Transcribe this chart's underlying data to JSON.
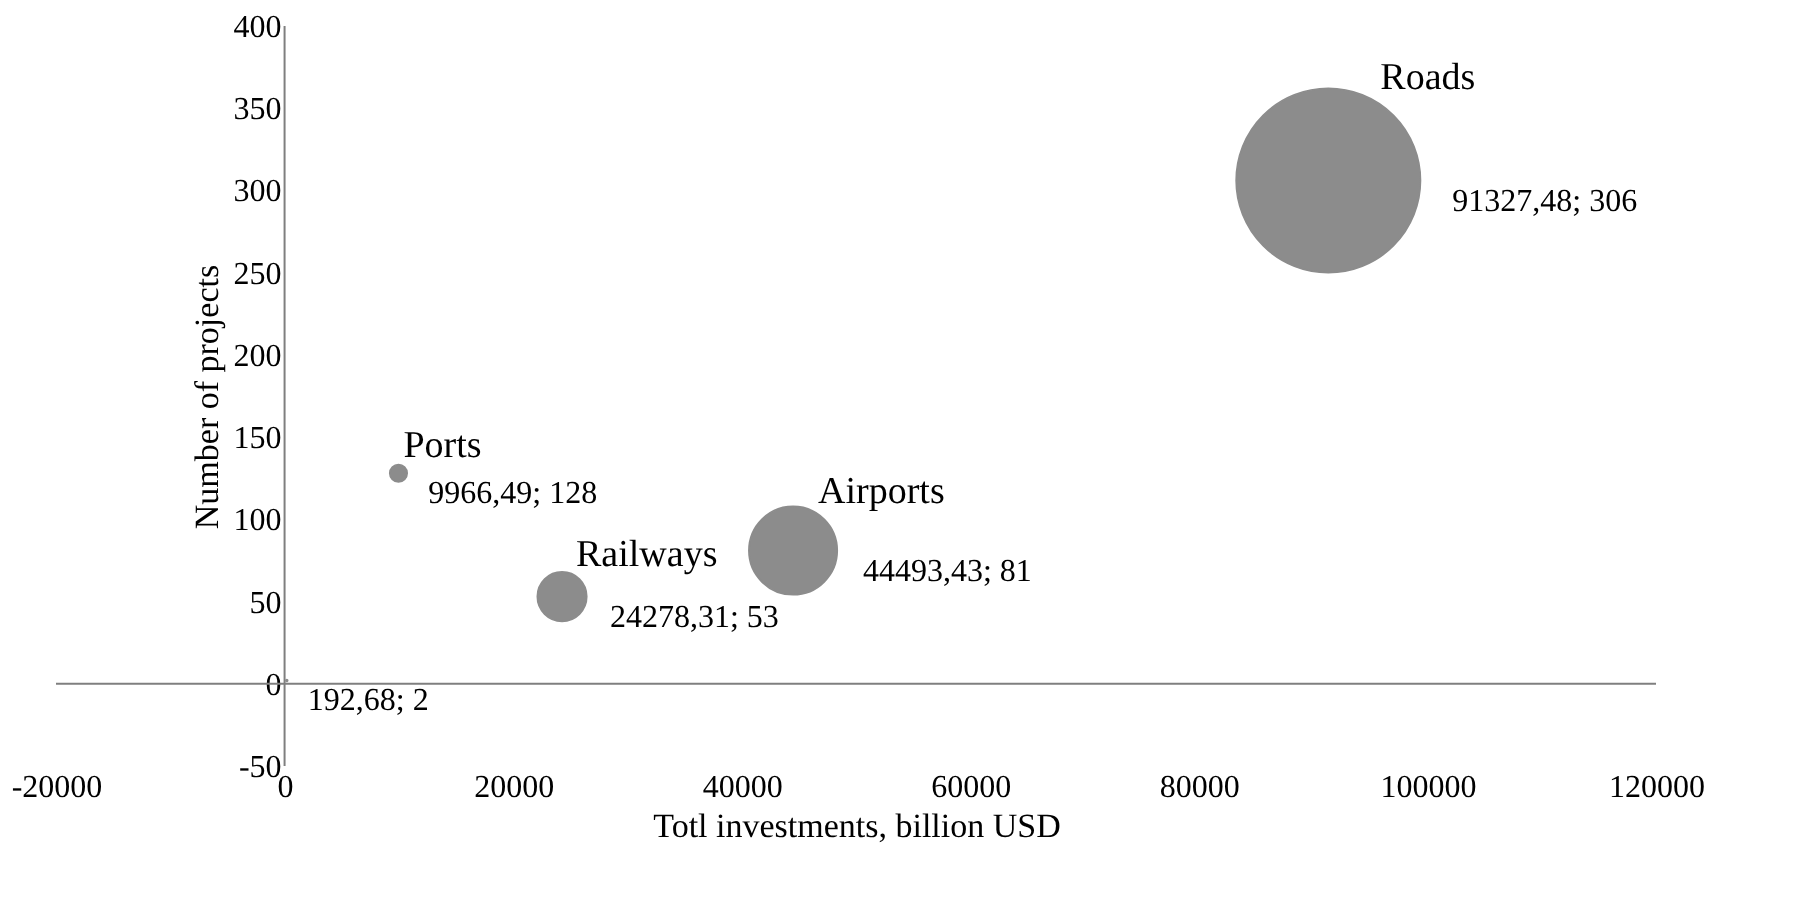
{
  "chart_data": {
    "type": "bubble",
    "xlabel": "Totl investments, billion USD",
    "ylabel": "Number of projects",
    "x": [
      192.68,
      9966.49,
      24278.31,
      44493.43,
      91327.48
    ],
    "series": [
      {
        "color": "#8c8c8c",
        "values": [
          2,
          128,
          53,
          81,
          306
        ],
        "sizes": [
          0.0001,
          0.009,
          0.072,
          0.23,
          1
        ],
        "value_labels": [
          "192,68; 2",
          "9966,49; 128",
          "24278,31; 53",
          "44493,43; 81",
          "91327,48; 306"
        ]
      }
    ],
    "annotations": [
      {
        "text": "Ports",
        "x": 9966.49,
        "y": 128
      },
      {
        "text": "Railways",
        "x": 24278.31,
        "y": 53
      },
      {
        "text": "Airports",
        "x": 44493.43,
        "y": 81
      },
      {
        "text": "Roads",
        "x": 91327.48,
        "y": 306
      }
    ],
    "xlim": [
      -20000,
      120000
    ],
    "xticks": [
      -20000,
      0,
      20000,
      40000,
      60000,
      80000,
      100000,
      120000
    ],
    "ylim": [
      -50,
      400
    ],
    "yticks": [
      -50,
      0,
      50,
      100,
      150,
      200,
      250,
      300,
      350,
      400
    ]
  }
}
